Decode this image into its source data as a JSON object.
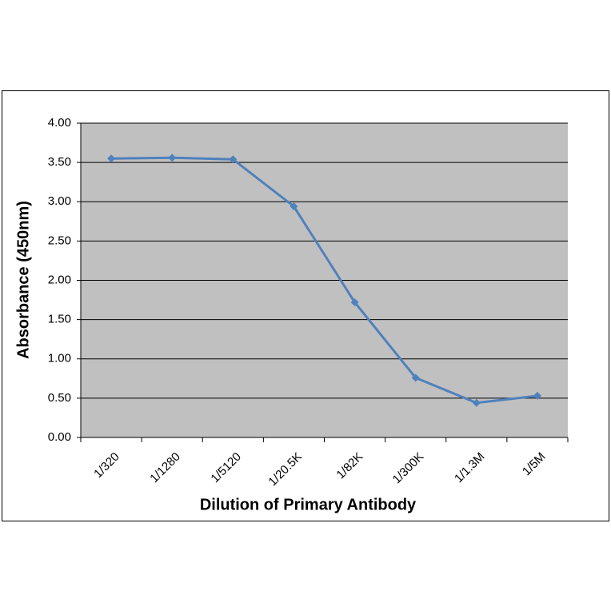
{
  "chart_data": {
    "type": "line",
    "x_label": "Dilution of Primary Antibody",
    "y_label": "Absorbance (450nm)",
    "categories": [
      "1/320",
      "1/1280",
      "1/5120",
      "1/20.5K",
      "1/82K",
      "1/300K",
      "1/1.3M",
      "1/5M"
    ],
    "series": [
      {
        "color": "#4f81bd",
        "values": [
          3.55,
          3.56,
          3.54,
          2.94,
          1.72,
          0.76,
          0.44,
          0.53
        ]
      }
    ],
    "ylim": [
      0,
      4
    ],
    "yticks": [
      {
        "value": 0,
        "label": "0.00"
      },
      {
        "value": 0.5,
        "label": "0.50"
      },
      {
        "value": 1,
        "label": "1.00"
      },
      {
        "value": 1.5,
        "label": "1.50"
      },
      {
        "value": 2,
        "label": "2.00"
      },
      {
        "value": 2.5,
        "label": "2.50"
      },
      {
        "value": 3,
        "label": "3.00"
      },
      {
        "value": 3.5,
        "label": "3.50"
      },
      {
        "value": 4,
        "label": "4.00"
      }
    ],
    "grid": true
  }
}
